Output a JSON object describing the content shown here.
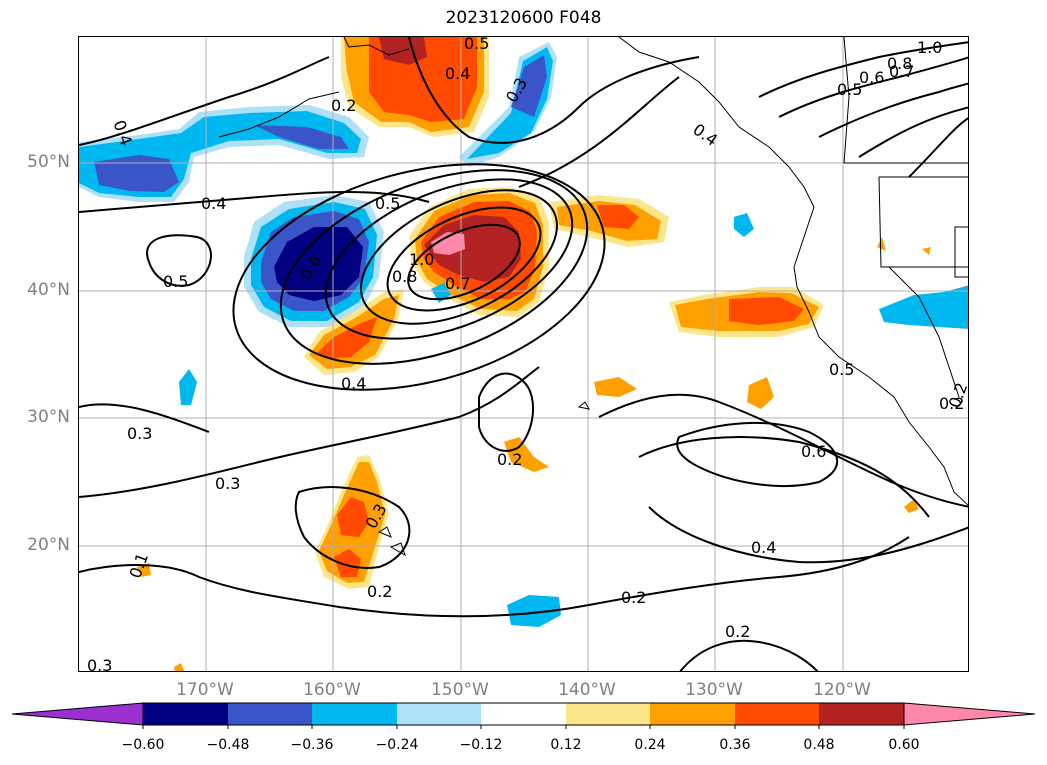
{
  "title": "2023120600 F048",
  "map": {
    "lat_labels": [
      "50°N",
      "40°N",
      "30°N",
      "20°N"
    ],
    "lon_labels": [
      "170°W",
      "160°W",
      "150°W",
      "140°W",
      "130°W",
      "120°W"
    ],
    "contour_labels": [
      "0.5",
      "0.4",
      "0.2",
      "0.3",
      "0.4",
      "1.0",
      "0.8",
      "0.6",
      "0.7",
      "0.5",
      "0.4",
      "0.4",
      "0.5",
      "0.6",
      "0.8",
      "1.0",
      "0.7",
      "0.4",
      "0.5",
      "0.3",
      "0.3",
      "0.2",
      "0.2",
      "0.3",
      "0.2",
      "0.4",
      "0.2",
      "0.2",
      "0.6",
      "0.5",
      "0.2",
      "0.1",
      "0.3"
    ]
  },
  "colorbar": {
    "tick_labels": [
      "−0.60",
      "−0.48",
      "−0.36",
      "−0.24",
      "−0.12",
      "0.12",
      "0.24",
      "0.36",
      "0.48",
      "0.60"
    ],
    "colors": [
      "#9b30d0",
      "#000080",
      "#3a55c8",
      "#00b8f0",
      "#aee0f8",
      "#ffffff",
      "#fde68a",
      "#ffa000",
      "#ff4a00",
      "#b22222",
      "#ff88aa"
    ]
  },
  "fill_colors": {
    "blue_dark": "#000080",
    "blue": "#3a55c8",
    "blue_light": "#00b8f0",
    "blue_pale": "#aee0f8",
    "yellow": "#fde68a",
    "orange": "#ffa000",
    "red_orange": "#ff4a00",
    "red_dark": "#b22222",
    "pink": "#ff88aa"
  }
}
